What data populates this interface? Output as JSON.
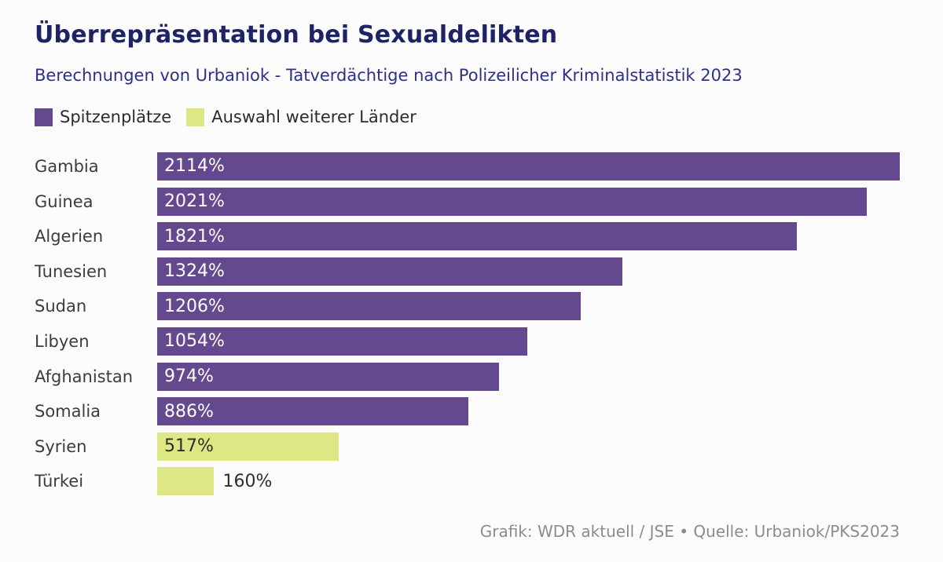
{
  "header": {
    "title": "Überrepräsentation bei Sexualdelikten",
    "subtitle": "Berechnungen von Urbaniok - Tatverdächtige nach Polizeilicher Kriminalstatistik 2023"
  },
  "legend": {
    "items": [
      {
        "label": "Spitzenplätze",
        "color_key": "bar_top"
      },
      {
        "label": "Auswahl weiterer Länder",
        "color_key": "bar_other"
      }
    ]
  },
  "chart_data": {
    "type": "bar",
    "orientation": "horizontal",
    "title": "Überrepräsentation bei Sexualdelikten",
    "subtitle": "Berechnungen von Urbaniok - Tatverdächtige nach Polizeilicher Kriminalstatistik 2023",
    "xlabel": "",
    "ylabel": "",
    "axis_max": 2114,
    "grid": false,
    "legend_position": "top-left",
    "bars": [
      {
        "category": "Gambia",
        "value": 2114,
        "value_label": "2114%",
        "group": "top",
        "label_position": "inside"
      },
      {
        "category": "Guinea",
        "value": 2021,
        "value_label": "2021%",
        "group": "top",
        "label_position": "inside"
      },
      {
        "category": "Algerien",
        "value": 1821,
        "value_label": "1821%",
        "group": "top",
        "label_position": "inside"
      },
      {
        "category": "Tunesien",
        "value": 1324,
        "value_label": "1324%",
        "group": "top",
        "label_position": "inside"
      },
      {
        "category": "Sudan",
        "value": 1206,
        "value_label": "1206%",
        "group": "top",
        "label_position": "inside"
      },
      {
        "category": "Libyen",
        "value": 1054,
        "value_label": "1054%",
        "group": "top",
        "label_position": "inside"
      },
      {
        "category": "Afghanistan",
        "value": 974,
        "value_label": "974%",
        "group": "top",
        "label_position": "inside"
      },
      {
        "category": "Somalia",
        "value": 886,
        "value_label": "886%",
        "group": "top",
        "label_position": "inside"
      },
      {
        "category": "Syrien",
        "value": 517,
        "value_label": "517%",
        "group": "other",
        "label_position": "inside"
      },
      {
        "category": "Türkei",
        "value": 160,
        "value_label": "160%",
        "group": "other",
        "label_position": "outside"
      }
    ]
  },
  "footer": {
    "credit": "Grafik: WDR aktuell / JSE • Quelle: Urbaniok/PKS2023"
  },
  "colors": {
    "bar_top": "#65498f",
    "bar_other": "#dde783",
    "title": "#1e2366",
    "subtitle": "#2d3184",
    "label": "#3c3c3c",
    "value_on_purple": "#ffffff",
    "value_on_green": "#2d2d2d",
    "footer": "#8c8c8c",
    "background": "#fcfcfc"
  }
}
